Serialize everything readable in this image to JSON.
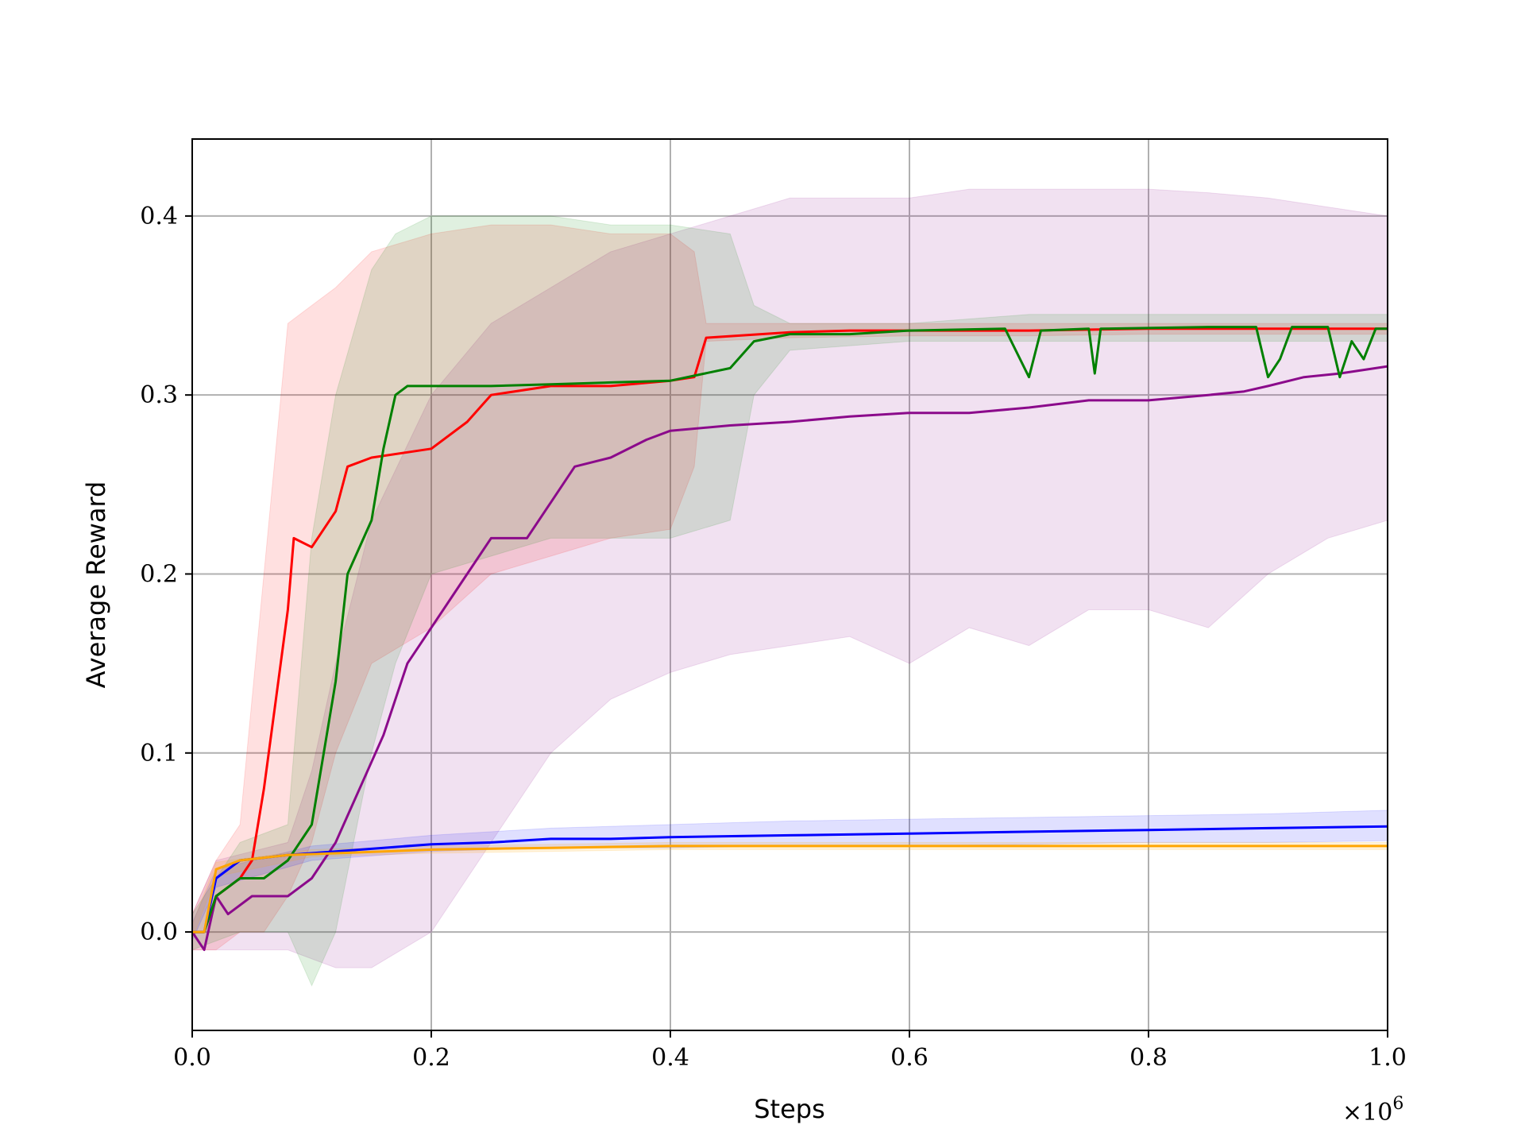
{
  "chart_data": {
    "type": "line",
    "title": "",
    "xlabel": "Steps",
    "ylabel": "Average Reward",
    "x_multiplier_label": "×10",
    "x_multiplier_exponent": "6",
    "xlim": [
      0,
      1.0
    ],
    "ylim": [
      -0.055,
      0.443
    ],
    "xticks": [
      0.0,
      0.2,
      0.4,
      0.6,
      0.8,
      1.0
    ],
    "xtick_labels": [
      "0.0",
      "0.2",
      "0.4",
      "0.6",
      "0.8",
      "1.0"
    ],
    "yticks": [
      0.0,
      0.1,
      0.2,
      0.3,
      0.4
    ],
    "ytick_labels": [
      "0.0",
      "0.1",
      "0.2",
      "0.3",
      "0.4"
    ],
    "grid": true,
    "legend": "none",
    "series": [
      {
        "color": "#8b0a8b",
        "band_opacity": 0.12,
        "line": [
          [
            0,
            0.0
          ],
          [
            0.01,
            -0.01
          ],
          [
            0.02,
            0.02
          ],
          [
            0.03,
            0.01
          ],
          [
            0.05,
            0.02
          ],
          [
            0.08,
            0.02
          ],
          [
            0.1,
            0.03
          ],
          [
            0.12,
            0.05
          ],
          [
            0.14,
            0.08
          ],
          [
            0.16,
            0.11
          ],
          [
            0.18,
            0.15
          ],
          [
            0.2,
            0.17
          ],
          [
            0.22,
            0.19
          ],
          [
            0.25,
            0.22
          ],
          [
            0.28,
            0.22
          ],
          [
            0.3,
            0.24
          ],
          [
            0.32,
            0.26
          ],
          [
            0.35,
            0.265
          ],
          [
            0.38,
            0.275
          ],
          [
            0.4,
            0.28
          ],
          [
            0.45,
            0.283
          ],
          [
            0.5,
            0.285
          ],
          [
            0.55,
            0.288
          ],
          [
            0.6,
            0.29
          ],
          [
            0.65,
            0.29
          ],
          [
            0.7,
            0.293
          ],
          [
            0.75,
            0.297
          ],
          [
            0.8,
            0.297
          ],
          [
            0.85,
            0.3
          ],
          [
            0.88,
            0.302
          ],
          [
            0.9,
            0.305
          ],
          [
            0.93,
            0.31
          ],
          [
            0.96,
            0.312
          ],
          [
            1.0,
            0.316
          ]
        ],
        "upper": [
          [
            0,
            0.01
          ],
          [
            0.02,
            0.04
          ],
          [
            0.05,
            0.045
          ],
          [
            0.08,
            0.05
          ],
          [
            0.1,
            0.09
          ],
          [
            0.12,
            0.15
          ],
          [
            0.15,
            0.23
          ],
          [
            0.2,
            0.3
          ],
          [
            0.25,
            0.34
          ],
          [
            0.3,
            0.36
          ],
          [
            0.35,
            0.38
          ],
          [
            0.4,
            0.39
          ],
          [
            0.45,
            0.4
          ],
          [
            0.5,
            0.41
          ],
          [
            0.55,
            0.41
          ],
          [
            0.6,
            0.41
          ],
          [
            0.65,
            0.415
          ],
          [
            0.7,
            0.415
          ],
          [
            0.75,
            0.415
          ],
          [
            0.8,
            0.415
          ],
          [
            0.85,
            0.413
          ],
          [
            0.9,
            0.41
          ],
          [
            0.95,
            0.405
          ],
          [
            1.0,
            0.4
          ]
        ],
        "lower": [
          [
            0,
            -0.01
          ],
          [
            0.02,
            -0.01
          ],
          [
            0.05,
            -0.01
          ],
          [
            0.08,
            -0.01
          ],
          [
            0.1,
            -0.015
          ],
          [
            0.12,
            -0.02
          ],
          [
            0.15,
            -0.02
          ],
          [
            0.2,
            0.0
          ],
          [
            0.25,
            0.05
          ],
          [
            0.3,
            0.1
          ],
          [
            0.35,
            0.13
          ],
          [
            0.4,
            0.145
          ],
          [
            0.45,
            0.155
          ],
          [
            0.5,
            0.16
          ],
          [
            0.55,
            0.165
          ],
          [
            0.6,
            0.15
          ],
          [
            0.65,
            0.17
          ],
          [
            0.7,
            0.16
          ],
          [
            0.75,
            0.18
          ],
          [
            0.8,
            0.18
          ],
          [
            0.85,
            0.17
          ],
          [
            0.9,
            0.2
          ],
          [
            0.95,
            0.22
          ],
          [
            1.0,
            0.23
          ]
        ]
      },
      {
        "color": "#ff0000",
        "band_opacity": 0.12,
        "line": [
          [
            0,
            0.0
          ],
          [
            0.01,
            0.0
          ],
          [
            0.02,
            0.02
          ],
          [
            0.04,
            0.03
          ],
          [
            0.05,
            0.04
          ],
          [
            0.06,
            0.08
          ],
          [
            0.07,
            0.13
          ],
          [
            0.08,
            0.18
          ],
          [
            0.085,
            0.22
          ],
          [
            0.1,
            0.215
          ],
          [
            0.12,
            0.235
          ],
          [
            0.13,
            0.26
          ],
          [
            0.15,
            0.265
          ],
          [
            0.18,
            0.268
          ],
          [
            0.2,
            0.27
          ],
          [
            0.23,
            0.285
          ],
          [
            0.25,
            0.3
          ],
          [
            0.3,
            0.305
          ],
          [
            0.35,
            0.305
          ],
          [
            0.4,
            0.308
          ],
          [
            0.42,
            0.31
          ],
          [
            0.43,
            0.332
          ],
          [
            0.5,
            0.335
          ],
          [
            0.55,
            0.336
          ],
          [
            0.6,
            0.336
          ],
          [
            0.7,
            0.336
          ],
          [
            0.8,
            0.337
          ],
          [
            0.9,
            0.337
          ],
          [
            1.0,
            0.337
          ]
        ],
        "upper": [
          [
            0,
            0.01
          ],
          [
            0.02,
            0.04
          ],
          [
            0.04,
            0.06
          ],
          [
            0.06,
            0.2
          ],
          [
            0.08,
            0.34
          ],
          [
            0.1,
            0.35
          ],
          [
            0.12,
            0.36
          ],
          [
            0.15,
            0.38
          ],
          [
            0.2,
            0.39
          ],
          [
            0.25,
            0.395
          ],
          [
            0.3,
            0.395
          ],
          [
            0.35,
            0.39
          ],
          [
            0.4,
            0.39
          ],
          [
            0.42,
            0.38
          ],
          [
            0.43,
            0.34
          ],
          [
            0.5,
            0.34
          ],
          [
            0.6,
            0.34
          ],
          [
            0.7,
            0.34
          ],
          [
            0.8,
            0.34
          ],
          [
            0.9,
            0.34
          ],
          [
            1.0,
            0.34
          ]
        ],
        "lower": [
          [
            0,
            -0.01
          ],
          [
            0.02,
            -0.01
          ],
          [
            0.04,
            0.0
          ],
          [
            0.06,
            0.0
          ],
          [
            0.08,
            0.02
          ],
          [
            0.1,
            0.05
          ],
          [
            0.12,
            0.1
          ],
          [
            0.15,
            0.15
          ],
          [
            0.2,
            0.17
          ],
          [
            0.25,
            0.2
          ],
          [
            0.3,
            0.21
          ],
          [
            0.35,
            0.22
          ],
          [
            0.4,
            0.225
          ],
          [
            0.42,
            0.26
          ],
          [
            0.43,
            0.33
          ],
          [
            0.5,
            0.332
          ],
          [
            0.6,
            0.333
          ],
          [
            0.7,
            0.333
          ],
          [
            0.8,
            0.334
          ],
          [
            0.9,
            0.334
          ],
          [
            1.0,
            0.334
          ]
        ]
      },
      {
        "color": "#008000",
        "band_opacity": 0.12,
        "line": [
          [
            0,
            0.0
          ],
          [
            0.01,
            0.0
          ],
          [
            0.02,
            0.02
          ],
          [
            0.04,
            0.03
          ],
          [
            0.06,
            0.03
          ],
          [
            0.08,
            0.04
          ],
          [
            0.1,
            0.06
          ],
          [
            0.11,
            0.1
          ],
          [
            0.12,
            0.14
          ],
          [
            0.13,
            0.2
          ],
          [
            0.15,
            0.23
          ],
          [
            0.16,
            0.27
          ],
          [
            0.17,
            0.3
          ],
          [
            0.18,
            0.305
          ],
          [
            0.2,
            0.305
          ],
          [
            0.25,
            0.305
          ],
          [
            0.3,
            0.306
          ],
          [
            0.35,
            0.307
          ],
          [
            0.4,
            0.308
          ],
          [
            0.45,
            0.315
          ],
          [
            0.47,
            0.33
          ],
          [
            0.5,
            0.334
          ],
          [
            0.55,
            0.334
          ],
          [
            0.6,
            0.336
          ],
          [
            0.68,
            0.337
          ],
          [
            0.7,
            0.31
          ],
          [
            0.71,
            0.336
          ],
          [
            0.75,
            0.337
          ],
          [
            0.755,
            0.312
          ],
          [
            0.76,
            0.337
          ],
          [
            0.85,
            0.338
          ],
          [
            0.89,
            0.338
          ],
          [
            0.9,
            0.31
          ],
          [
            0.91,
            0.32
          ],
          [
            0.92,
            0.338
          ],
          [
            0.95,
            0.338
          ],
          [
            0.96,
            0.31
          ],
          [
            0.97,
            0.33
          ],
          [
            0.98,
            0.32
          ],
          [
            0.99,
            0.337
          ],
          [
            1.0,
            0.337
          ]
        ],
        "upper": [
          [
            0,
            0.01
          ],
          [
            0.04,
            0.05
          ],
          [
            0.08,
            0.06
          ],
          [
            0.1,
            0.22
          ],
          [
            0.12,
            0.3
          ],
          [
            0.15,
            0.37
          ],
          [
            0.17,
            0.39
          ],
          [
            0.2,
            0.4
          ],
          [
            0.25,
            0.4
          ],
          [
            0.3,
            0.4
          ],
          [
            0.35,
            0.395
          ],
          [
            0.4,
            0.395
          ],
          [
            0.45,
            0.39
          ],
          [
            0.47,
            0.35
          ],
          [
            0.5,
            0.34
          ],
          [
            0.6,
            0.34
          ],
          [
            0.7,
            0.345
          ],
          [
            0.75,
            0.345
          ],
          [
            0.9,
            0.345
          ],
          [
            1.0,
            0.345
          ]
        ],
        "lower": [
          [
            0,
            -0.01
          ],
          [
            0.04,
            0.0
          ],
          [
            0.08,
            0.0
          ],
          [
            0.1,
            -0.03
          ],
          [
            0.12,
            0.0
          ],
          [
            0.15,
            0.1
          ],
          [
            0.17,
            0.15
          ],
          [
            0.2,
            0.2
          ],
          [
            0.25,
            0.21
          ],
          [
            0.3,
            0.22
          ],
          [
            0.35,
            0.22
          ],
          [
            0.4,
            0.22
          ],
          [
            0.45,
            0.23
          ],
          [
            0.47,
            0.3
          ],
          [
            0.5,
            0.325
          ],
          [
            0.6,
            0.33
          ],
          [
            0.7,
            0.33
          ],
          [
            0.75,
            0.33
          ],
          [
            0.9,
            0.33
          ],
          [
            1.0,
            0.33
          ]
        ]
      },
      {
        "color": "#0000ff",
        "band_opacity": 0.12,
        "line": [
          [
            0,
            0.0
          ],
          [
            0.01,
            0.0
          ],
          [
            0.02,
            0.03
          ],
          [
            0.04,
            0.04
          ],
          [
            0.08,
            0.043
          ],
          [
            0.12,
            0.045
          ],
          [
            0.16,
            0.047
          ],
          [
            0.2,
            0.049
          ],
          [
            0.25,
            0.05
          ],
          [
            0.3,
            0.052
          ],
          [
            0.35,
            0.052
          ],
          [
            0.4,
            0.053
          ],
          [
            0.5,
            0.054
          ],
          [
            0.6,
            0.055
          ],
          [
            0.7,
            0.056
          ],
          [
            0.8,
            0.057
          ],
          [
            0.9,
            0.058
          ],
          [
            1.0,
            0.059
          ]
        ],
        "upper": [
          [
            0,
            0.005
          ],
          [
            0.02,
            0.035
          ],
          [
            0.1,
            0.048
          ],
          [
            0.2,
            0.054
          ],
          [
            0.3,
            0.058
          ],
          [
            0.4,
            0.06
          ],
          [
            0.5,
            0.062
          ],
          [
            0.6,
            0.063
          ],
          [
            0.7,
            0.064
          ],
          [
            0.8,
            0.065
          ],
          [
            0.9,
            0.066
          ],
          [
            1.0,
            0.068
          ]
        ],
        "lower": [
          [
            0,
            -0.005
          ],
          [
            0.02,
            0.025
          ],
          [
            0.1,
            0.04
          ],
          [
            0.2,
            0.045
          ],
          [
            0.3,
            0.047
          ],
          [
            0.4,
            0.047
          ],
          [
            0.5,
            0.048
          ],
          [
            0.6,
            0.048
          ],
          [
            0.7,
            0.049
          ],
          [
            0.8,
            0.05
          ],
          [
            0.9,
            0.05
          ],
          [
            1.0,
            0.051
          ]
        ]
      },
      {
        "color": "#ffa500",
        "band_opacity": 0.15,
        "line": [
          [
            0,
            0.0
          ],
          [
            0.01,
            0.0
          ],
          [
            0.02,
            0.035
          ],
          [
            0.04,
            0.04
          ],
          [
            0.08,
            0.043
          ],
          [
            0.12,
            0.044
          ],
          [
            0.16,
            0.045
          ],
          [
            0.2,
            0.046
          ],
          [
            0.3,
            0.047
          ],
          [
            0.4,
            0.048
          ],
          [
            0.5,
            0.048
          ],
          [
            0.6,
            0.048
          ],
          [
            0.7,
            0.048
          ],
          [
            0.8,
            0.048
          ],
          [
            0.9,
            0.048
          ],
          [
            1.0,
            0.048
          ]
        ],
        "upper": [
          [
            0,
            0.004
          ],
          [
            0.02,
            0.039
          ],
          [
            0.1,
            0.046
          ],
          [
            0.2,
            0.048
          ],
          [
            0.4,
            0.05
          ],
          [
            0.6,
            0.05
          ],
          [
            0.8,
            0.05
          ],
          [
            1.0,
            0.05
          ]
        ],
        "lower": [
          [
            0,
            -0.004
          ],
          [
            0.02,
            0.031
          ],
          [
            0.1,
            0.042
          ],
          [
            0.2,
            0.044
          ],
          [
            0.4,
            0.046
          ],
          [
            0.6,
            0.046
          ],
          [
            0.8,
            0.046
          ],
          [
            1.0,
            0.046
          ]
        ]
      }
    ]
  }
}
